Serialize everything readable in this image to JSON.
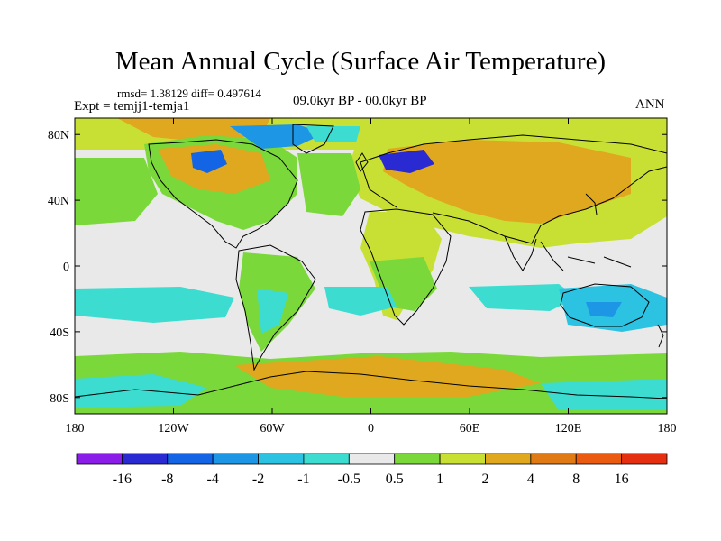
{
  "title": "Mean Annual Cycle (Surface Air Temperature)",
  "stats": "rmsd= 1.38129 diff= 0.497614",
  "experiment": "Expt = temjj1-temja1",
  "period": "09.0kyr BP - 00.0kyr BP",
  "season": "ANN",
  "x_ticks": [
    "180",
    "120W",
    "60W",
    "0",
    "60E",
    "120E",
    "180"
  ],
  "y_ticks": [
    "80N",
    "40N",
    "0",
    "40S",
    "80S"
  ],
  "colorbar": {
    "labels": [
      "-16",
      "-8",
      "-4",
      "-2",
      "-1",
      "-0.5",
      "0.5",
      "1",
      "2",
      "4",
      "8",
      "16"
    ],
    "colors": [
      "#8a1ee8",
      "#2a2ad2",
      "#1464e6",
      "#1e96e6",
      "#2cc2e2",
      "#3cdcd0",
      "#e9e9e9",
      "#7ad83a",
      "#c8e034",
      "#e0a81e",
      "#e07a14",
      "#ea5a10",
      "#e43010"
    ]
  },
  "palette": {
    "ocean_neutral": "#e9e9e9",
    "warm_mild": "#7ad83a",
    "warm_small": "#c8e034",
    "warm_moderate": "#e0a81e",
    "warm_strong": "#e07a14",
    "cool_weak": "#3cdcd0",
    "cool_mild": "#2cc2e2",
    "cool_moderate": "#1e96e6",
    "cool_strong": "#1464e6",
    "cool_extreme": "#2a2ad2"
  }
}
